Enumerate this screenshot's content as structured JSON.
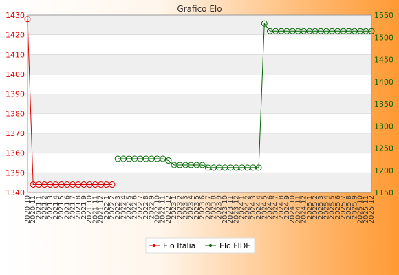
{
  "chart_data": {
    "type": "line",
    "title": "Grafico Elo",
    "categories": [
      "2020 10",
      "2020 11",
      "2021 1",
      "2021 2",
      "2021 3",
      "2021 4",
      "2021 5",
      "2021 6",
      "2021 7",
      "2021 8",
      "2021 9",
      "2021 10",
      "2021 11",
      "2021 12",
      "2022 1",
      "2022 2",
      "2022 3",
      "2022 4",
      "2022 5",
      "2022 6",
      "2022 7",
      "2022 8",
      "2022 9",
      "2022 10",
      "2022 11",
      "2022 12",
      "2023 1",
      "2023 2",
      "2023 3",
      "2023 4",
      "2023 5",
      "2023 6",
      "2023 7",
      "2023 8",
      "2023 9",
      "2023 10",
      "2023 11",
      "2023 12",
      "2024 1",
      "2024 2",
      "2024 3",
      "2024 4",
      "2024 5",
      "2024 6",
      "2024 7",
      "2024 8",
      "2024 9",
      "2024 10",
      "2024 11",
      "2024 12",
      "2025 1",
      "2025 2",
      "2025 3",
      "2025 4",
      "2025 5",
      "2025 6",
      "2025 7",
      "2025 8",
      "2025 9",
      "2025 10",
      "2025 11",
      "2025 12"
    ],
    "series": [
      {
        "name": "Elo Italia",
        "axis": "left",
        "color": "#dd0000",
        "values": [
          1428,
          1344,
          1344,
          1344,
          1344,
          1344,
          1344,
          1344,
          1344,
          1344,
          1344,
          1344,
          1344,
          1344,
          1344,
          1344,
          null,
          null,
          null,
          null,
          null,
          null,
          null,
          null,
          null,
          null,
          null,
          null,
          null,
          null,
          null,
          null,
          null,
          null,
          null,
          null,
          null,
          null,
          null,
          null,
          null,
          null,
          null,
          null,
          null,
          null,
          null,
          null,
          null,
          null,
          null,
          null,
          null,
          null,
          null,
          null,
          null,
          null,
          null,
          null,
          null,
          null
        ]
      },
      {
        "name": "Elo FIDE",
        "axis": "right",
        "color": "#006600",
        "values": [
          null,
          null,
          null,
          null,
          null,
          null,
          null,
          null,
          null,
          null,
          null,
          null,
          null,
          null,
          null,
          null,
          1226,
          1226,
          1226,
          1226,
          1226,
          1226,
          1226,
          1226,
          1226,
          1222,
          1212,
          1212,
          1212,
          1212,
          1212,
          1212,
          1206,
          1206,
          1206,
          1206,
          1206,
          1206,
          1206,
          1206,
          1206,
          1206,
          1531,
          1514,
          1514,
          1514,
          1514,
          1514,
          1514,
          1514,
          1514,
          1514,
          1514,
          1514,
          1514,
          1514,
          1514,
          1514,
          1514,
          1514,
          1514,
          1514
        ]
      }
    ],
    "y_left": {
      "min": 1340,
      "max": 1430,
      "ticks": [
        1340,
        1350,
        1360,
        1370,
        1380,
        1390,
        1400,
        1410,
        1420,
        1430
      ]
    },
    "y_right": {
      "min": 1150,
      "max": 1550,
      "ticks": [
        1150,
        1200,
        1250,
        1300,
        1350,
        1400,
        1450,
        1500,
        1550
      ]
    },
    "grid": true,
    "legend_position": "bottom"
  }
}
